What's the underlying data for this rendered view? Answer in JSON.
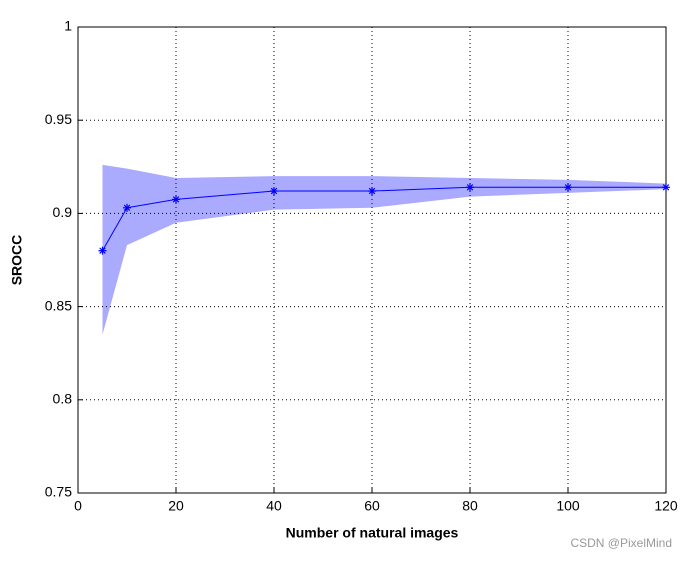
{
  "chart_data": {
    "type": "line",
    "xlabel": "Number of natural images",
    "ylabel": "SROCC",
    "x": [
      5,
      10,
      20,
      40,
      60,
      80,
      100,
      120
    ],
    "series": [
      {
        "color": "#0000ff",
        "band_color": "#aaaaff",
        "values": [
          0.88,
          0.903,
          0.9075,
          0.912,
          0.912,
          0.914,
          0.914,
          0.914
        ],
        "upper": [
          0.926,
          0.924,
          0.919,
          0.92,
          0.92,
          0.919,
          0.918,
          0.916
        ],
        "lower": [
          0.835,
          0.883,
          0.895,
          0.902,
          0.903,
          0.909,
          0.911,
          0.913
        ]
      }
    ],
    "xlim": [
      0,
      120
    ],
    "xticks": [
      0,
      20,
      40,
      60,
      80,
      100,
      120
    ],
    "ylim": [
      0.75,
      1
    ],
    "yticks": [
      0.75,
      0.8,
      0.85,
      0.9,
      0.95,
      1
    ],
    "grid": true
  },
  "watermark": "CSDN @PixelMind"
}
